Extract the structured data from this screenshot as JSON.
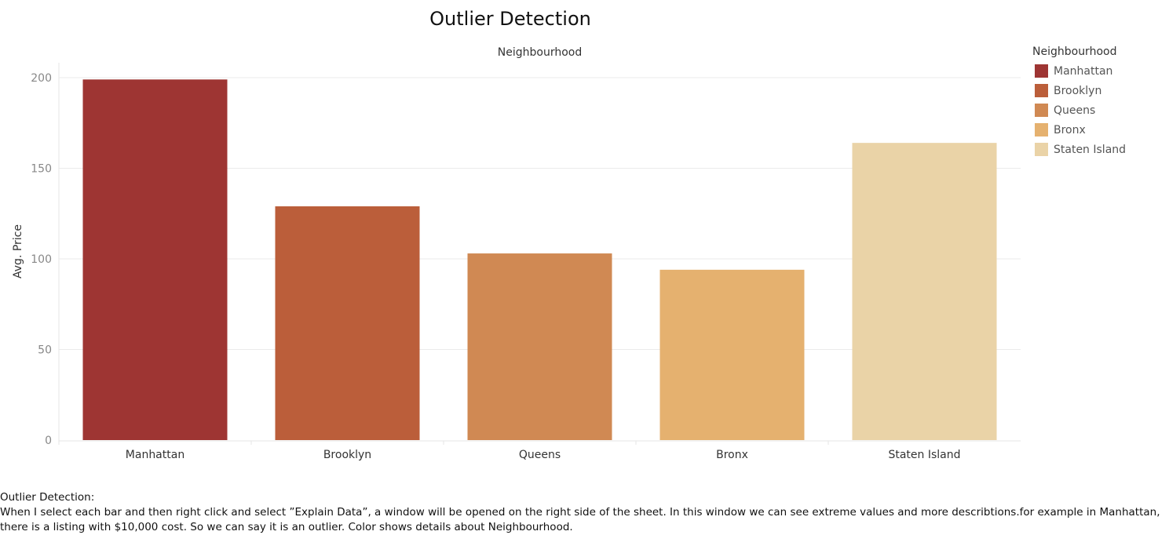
{
  "chart_data": {
    "type": "bar",
    "title": "Outlier Detection",
    "header": "Neighbourhood",
    "ylabel": "Avg. Price",
    "ylim": [
      0,
      210
    ],
    "yticks": [
      0,
      50,
      100,
      150,
      200
    ],
    "grid": true,
    "categories": [
      "Manhattan",
      "Brooklyn",
      "Queens",
      "Bronx",
      "Staten Island"
    ],
    "values": [
      199,
      129,
      103,
      94,
      164
    ],
    "colors": [
      "#9e3533",
      "#bb5e3a",
      "#d08953",
      "#e5b16f",
      "#ead3a7"
    ],
    "legend": {
      "title": "Neighbourhood",
      "position": "right",
      "entries": [
        "Manhattan",
        "Brooklyn",
        "Queens",
        "Bronx",
        "Staten Island"
      ]
    }
  },
  "caption": {
    "heading": "Outlier Detection:",
    "body": "When I select  each bar and then right click and select ”Explain Data”, a window will be opened on the right side of the sheet. In this window we can see extreme values and more describtions.for example in Manhattan, there is a listing with $10,000  cost. So we can say it is an outlier. Color shows details about Neighbourhood."
  }
}
